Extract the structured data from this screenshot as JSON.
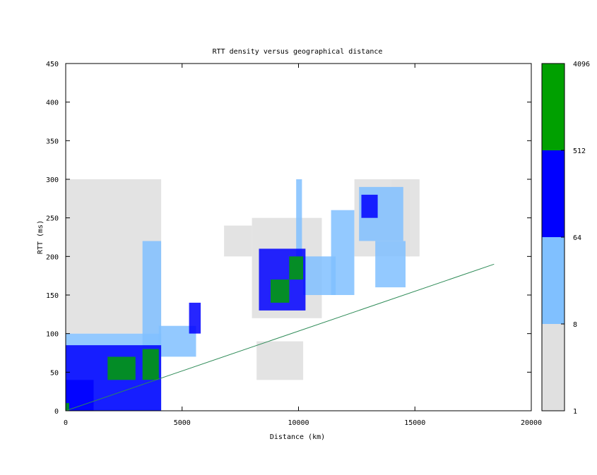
{
  "chart_data": {
    "type": "heatmap",
    "title": "RTT density versus geographical distance",
    "xlabel": "Distance (km)",
    "ylabel": "RTT (ms)",
    "xlim": [
      0,
      20000
    ],
    "ylim": [
      0,
      450
    ],
    "x_ticks": [
      "0",
      "5000",
      "10000",
      "15000",
      "20000"
    ],
    "y_ticks": [
      "0",
      "50",
      "100",
      "150",
      "200",
      "250",
      "300",
      "350",
      "400",
      "450"
    ],
    "color_scale": {
      "scale": "log",
      "tick_labels": [
        "1",
        "8",
        "64",
        "512",
        "4096"
      ],
      "bins": [
        {
          "from": 1,
          "to": 8,
          "color": "#e0e0e0"
        },
        {
          "from": 8,
          "to": 64,
          "color": "#80c0ff"
        },
        {
          "from": 64,
          "to": 512,
          "color": "#0000ff"
        },
        {
          "from": 512,
          "to": 4096,
          "color": "#00a000"
        }
      ]
    },
    "reference_line": {
      "color": "#2e8b57",
      "points": [
        [
          0,
          0
        ],
        [
          18400,
          190
        ]
      ]
    },
    "density_regions": [
      {
        "x": [
          0,
          4100
        ],
        "y": [
          0,
          100
        ],
        "level": 1
      },
      {
        "x": [
          0,
          4100
        ],
        "y": [
          100,
          300
        ],
        "level": 0
      },
      {
        "x": [
          0,
          4100
        ],
        "y": [
          0,
          85
        ],
        "level": 2
      },
      {
        "x": [
          3300,
          4000
        ],
        "y": [
          40,
          80
        ],
        "level": 3
      },
      {
        "x": [
          1800,
          3000
        ],
        "y": [
          40,
          70
        ],
        "level": 3
      },
      {
        "x": [
          0,
          1200
        ],
        "y": [
          0,
          40
        ],
        "level": 2
      },
      {
        "x": [
          0,
          150
        ],
        "y": [
          0,
          10
        ],
        "level": 3
      },
      {
        "x": [
          3300,
          4100
        ],
        "y": [
          80,
          220
        ],
        "level": 1
      },
      {
        "x": [
          4000,
          5600
        ],
        "y": [
          70,
          110
        ],
        "level": 1
      },
      {
        "x": [
          5300,
          5800
        ],
        "y": [
          100,
          140
        ],
        "level": 2
      },
      {
        "x": [
          6800,
          8000
        ],
        "y": [
          200,
          240
        ],
        "level": 0
      },
      {
        "x": [
          8000,
          11000
        ],
        "y": [
          120,
          250
        ],
        "level": 0
      },
      {
        "x": [
          8300,
          10300
        ],
        "y": [
          130,
          210
        ],
        "level": 2
      },
      {
        "x": [
          8800,
          9600
        ],
        "y": [
          140,
          170
        ],
        "level": 3
      },
      {
        "x": [
          9600,
          10200
        ],
        "y": [
          170,
          200
        ],
        "level": 3
      },
      {
        "x": [
          9900,
          10150
        ],
        "y": [
          200,
          300
        ],
        "level": 1
      },
      {
        "x": [
          8200,
          10200
        ],
        "y": [
          40,
          90
        ],
        "level": 0
      },
      {
        "x": [
          10200,
          11600
        ],
        "y": [
          150,
          200
        ],
        "level": 1
      },
      {
        "x": [
          11400,
          12400
        ],
        "y": [
          150,
          260
        ],
        "level": 1
      },
      {
        "x": [
          12400,
          14800
        ],
        "y": [
          200,
          300
        ],
        "level": 0
      },
      {
        "x": [
          12600,
          14500
        ],
        "y": [
          220,
          290
        ],
        "level": 1
      },
      {
        "x": [
          12700,
          13400
        ],
        "y": [
          250,
          280
        ],
        "level": 2
      },
      {
        "x": [
          13300,
          14600
        ],
        "y": [
          160,
          220
        ],
        "level": 1
      },
      {
        "x": [
          14000,
          15200
        ],
        "y": [
          200,
          300
        ],
        "level": 0
      }
    ]
  }
}
